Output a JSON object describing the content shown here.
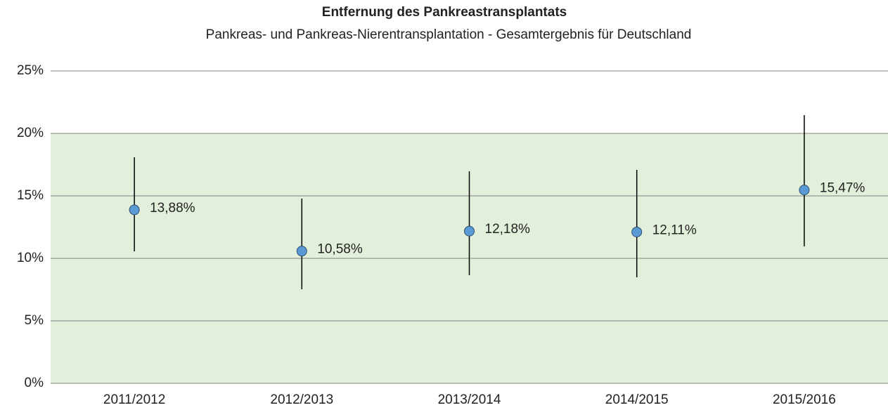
{
  "chart_data": {
    "type": "errorbar",
    "title": "Entfernung des Pankreastransplantats",
    "subtitle": "Pankreas- und Pankreas-Nierentransplantation - Gesamtergebnis für Deutschland",
    "categories": [
      "2011/2012",
      "2012/2013",
      "2013/2014",
      "2014/2015",
      "2015/2016"
    ],
    "series": [
      {
        "color": "#5b9bd5",
        "values": [
          13.88,
          10.58,
          12.18,
          12.11,
          15.47
        ],
        "value_labels": [
          "13,88%",
          "10,58%",
          "12,18%",
          "12,11%",
          "15,47%"
        ],
        "ci_lower": [
          10.56,
          7.53,
          8.65,
          8.48,
          10.96
        ],
        "ci_upper": [
          18.09,
          14.78,
          16.97,
          17.08,
          21.46
        ]
      }
    ],
    "reference_range": {
      "from": 0,
      "to": 20,
      "color": "#e2efda"
    },
    "ylim": [
      0,
      25
    ],
    "yticks": [
      {
        "value": 0,
        "label": "0%"
      },
      {
        "value": 5,
        "label": "5%"
      },
      {
        "value": 10,
        "label": "10%"
      },
      {
        "value": 15,
        "label": "15%"
      },
      {
        "value": 20,
        "label": "20%"
      },
      {
        "value": 25,
        "label": "25%"
      }
    ],
    "grid": true
  }
}
